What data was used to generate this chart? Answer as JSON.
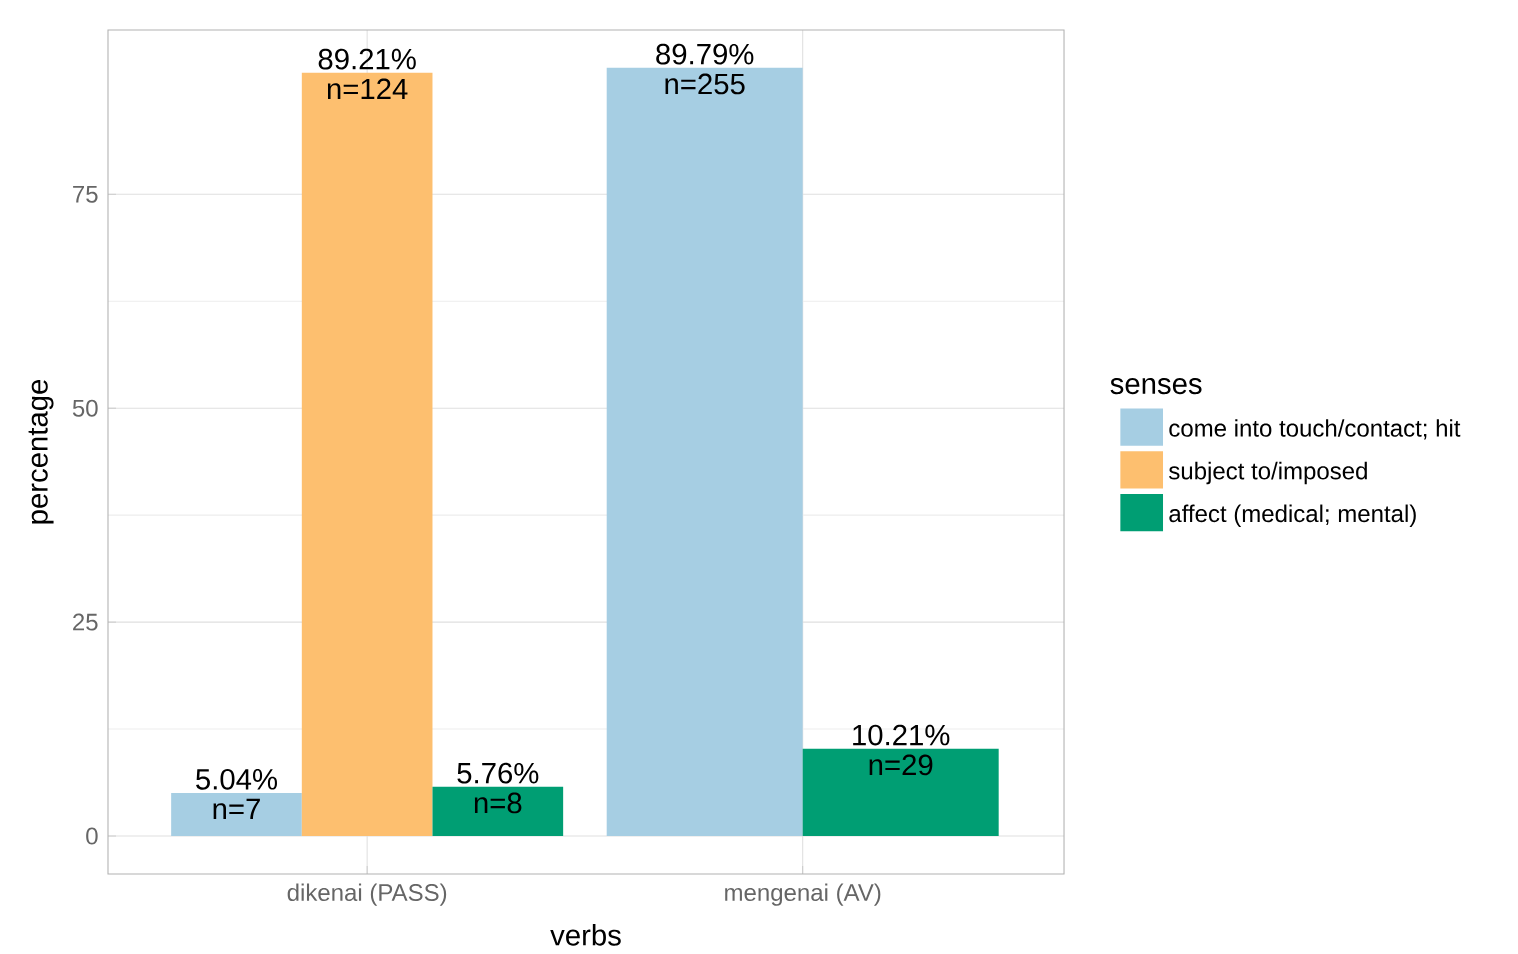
{
  "chart_data": {
    "type": "bar",
    "xlabel": "verbs",
    "ylabel": "percentage",
    "legend_title": "senses",
    "categories": [
      "dikenai (PASS)",
      "mengenai (AV)"
    ],
    "series": [
      {
        "name": "come into touch/contact; hit",
        "color": "#a6cee3",
        "values": [
          5.04,
          89.79
        ],
        "value_labels": [
          "5.04%",
          "89.79%"
        ]
      },
      {
        "name": "subject to/imposed",
        "color": "#fdbf6f",
        "values": [
          89.21,
          null
        ],
        "value_labels": [
          "89.21%",
          null
        ]
      },
      {
        "name": "affect (medical; mental)",
        "color": "#009e73",
        "values": [
          5.76,
          10.21
        ],
        "value_labels": [
          "5.76%",
          "10.21%"
        ]
      }
    ],
    "annotations": [
      "n=7",
      "n=124",
      "n=8",
      "n=255",
      "n=29"
    ],
    "ylim": [
      -4.44,
      94.2
    ],
    "yticks": [
      0,
      25,
      50,
      75
    ],
    "grid": true,
    "legend": "right"
  }
}
